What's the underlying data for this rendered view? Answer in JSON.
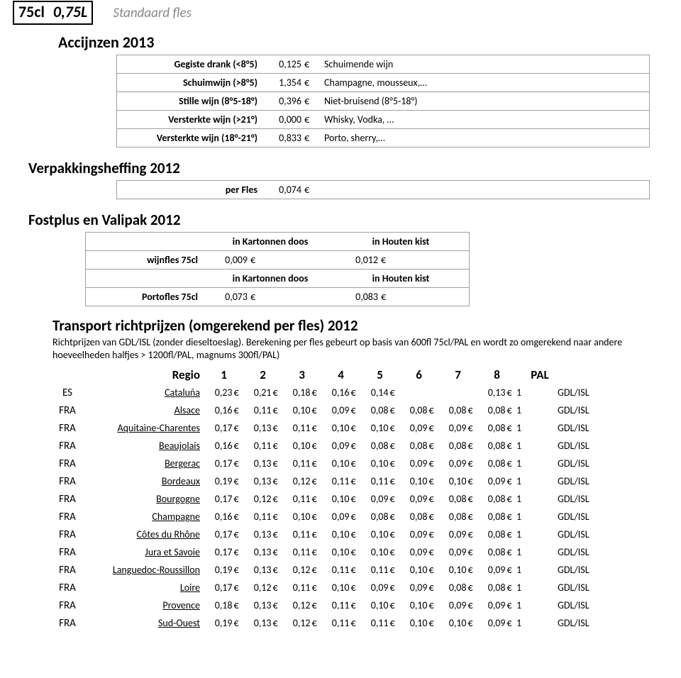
{
  "topbar": {
    "size": "75cl",
    "liters": "0,75L",
    "desc": "Standaard fles"
  },
  "excises": {
    "title": "Accijnzen 2013",
    "rows": [
      {
        "label": "Gegiste drank (<8°5)",
        "value": "0,125",
        "desc": "Schuimende wijn"
      },
      {
        "label": "Schuimwijn (>8°5)",
        "value": "1,354",
        "desc": "Champagne, mousseux,…"
      },
      {
        "label": "Stille wijn (8°5-18°)",
        "value": "0,396",
        "desc": "Niet-bruisend (8°5-18°)"
      },
      {
        "label": "Versterkte wijn (>21°)",
        "value": "0,000",
        "desc": "Whisky, Vodka, …"
      },
      {
        "label": "Versterkte wijn (18°-21°)",
        "value": "0,833",
        "desc": "Porto, sherry,…"
      }
    ]
  },
  "pack": {
    "title": "Verpakkingsheffing 2012",
    "label": "per Fles",
    "value": "0,074"
  },
  "fostplus": {
    "title": "Fostplus en Valipak 2012",
    "col1": "in Kartonnen doos",
    "col2": "in Houten kist",
    "rows": [
      {
        "label": "wijnfles 75cl",
        "v1": "0,009",
        "v2": "0,012"
      },
      {
        "label": "Portofles 75cl",
        "v1": "0,073",
        "v2": "0,083"
      }
    ]
  },
  "transport": {
    "title": "Transport richtprijzen (omgerekend per fles) 2012",
    "note": "Richtprijzen van GDL/ISL (zonder dieseltoeslag). Berekening per fles gebeurt op basis van 600fl 75cl/PAL en wordt zo omgerekend naar andere hoeveelheden halfjes > 1200fl/PAL, magnums 300fl/PAL)",
    "header": {
      "regio": "Regio",
      "cols": [
        "1",
        "2",
        "3",
        "4",
        "5",
        "6",
        "7",
        "8"
      ],
      "pal": "PAL"
    },
    "supplier": "GDL/ISL",
    "cut": "1",
    "rows": [
      {
        "cty": "ES",
        "reg": "Cataluña",
        "v": [
          "0,23",
          "0,21",
          "0,18",
          "0,16",
          "0,14",
          "",
          "",
          "0,13"
        ]
      },
      {
        "cty": "FRA",
        "reg": "Alsace",
        "v": [
          "0,16",
          "0,11",
          "0,10",
          "0,09",
          "0,08",
          "0,08",
          "0,08",
          "0,08"
        ]
      },
      {
        "cty": "FRA",
        "reg": "Aquitaine-Charentes",
        "v": [
          "0,17",
          "0,13",
          "0,11",
          "0,10",
          "0,10",
          "0,09",
          "0,09",
          "0,08"
        ]
      },
      {
        "cty": "FRA",
        "reg": "Beaujolais",
        "v": [
          "0,16",
          "0,11",
          "0,10",
          "0,09",
          "0,08",
          "0,08",
          "0,08",
          "0,08"
        ]
      },
      {
        "cty": "FRA",
        "reg": "Bergerac",
        "v": [
          "0,17",
          "0,13",
          "0,11",
          "0,10",
          "0,10",
          "0,09",
          "0,09",
          "0,08"
        ]
      },
      {
        "cty": "FRA",
        "reg": "Bordeaux",
        "v": [
          "0,19",
          "0,13",
          "0,12",
          "0,11",
          "0,11",
          "0,10",
          "0,10",
          "0,09"
        ]
      },
      {
        "cty": "FRA",
        "reg": "Bourgogne",
        "v": [
          "0,17",
          "0,12",
          "0,11",
          "0,10",
          "0,09",
          "0,09",
          "0,08",
          "0,08"
        ]
      },
      {
        "cty": "FRA",
        "reg": "Champagne",
        "v": [
          "0,16",
          "0,11",
          "0,10",
          "0,09",
          "0,08",
          "0,08",
          "0,08",
          "0,08"
        ]
      },
      {
        "cty": "FRA",
        "reg": "Côtes du Rhône",
        "v": [
          "0,17",
          "0,13",
          "0,11",
          "0,10",
          "0,10",
          "0,09",
          "0,09",
          "0,08"
        ]
      },
      {
        "cty": "FRA",
        "reg": "Jura et Savoie",
        "v": [
          "0,17",
          "0,13",
          "0,11",
          "0,10",
          "0,10",
          "0,09",
          "0,09",
          "0,08"
        ]
      },
      {
        "cty": "FRA",
        "reg": "Languedoc-Roussillon",
        "v": [
          "0,19",
          "0,13",
          "0,12",
          "0,11",
          "0,11",
          "0,10",
          "0,10",
          "0,09"
        ]
      },
      {
        "cty": "FRA",
        "reg": "Loire",
        "v": [
          "0,17",
          "0,12",
          "0,11",
          "0,10",
          "0,09",
          "0,09",
          "0,08",
          "0,08"
        ]
      },
      {
        "cty": "FRA",
        "reg": "Provence",
        "v": [
          "0,18",
          "0,13",
          "0,12",
          "0,11",
          "0,10",
          "0,10",
          "0,09",
          "0,09"
        ]
      },
      {
        "cty": "FRA",
        "reg": "Sud-Ouest",
        "v": [
          "0,19",
          "0,13",
          "0,12",
          "0,11",
          "0,11",
          "0,10",
          "0,10",
          "0,09"
        ]
      }
    ]
  }
}
